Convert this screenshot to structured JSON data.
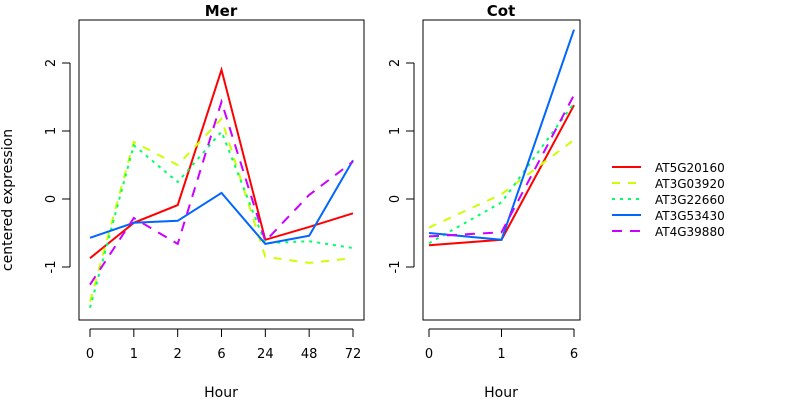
{
  "chart_data": [
    {
      "type": "line",
      "title": "Mer",
      "xlabel": "Hour",
      "ylabel": "centered expression",
      "categories": [
        "0",
        "1",
        "2",
        "6",
        "24",
        "48",
        "72"
      ],
      "yticks": [
        "-1",
        "0",
        "1",
        "2"
      ],
      "ylim": [
        -1.8,
        2.6
      ],
      "grid": false,
      "series": [
        {
          "name": "AT5G20160",
          "color": "#FF0000",
          "dash": "solid",
          "values": [
            -0.87,
            -0.35,
            -0.09,
            1.9,
            -0.6,
            -0.41,
            -0.21
          ]
        },
        {
          "name": "AT3G03920",
          "color": "#CCFF00",
          "dash": "dashed",
          "values": [
            -1.51,
            0.84,
            0.5,
            1.18,
            -0.85,
            -0.94,
            -0.87
          ]
        },
        {
          "name": "AT3G22660",
          "color": "#00FF66",
          "dash": "dotted",
          "values": [
            -1.6,
            0.79,
            0.25,
            0.99,
            -0.65,
            -0.62,
            -0.72
          ]
        },
        {
          "name": "AT3G53430",
          "color": "#0066FF",
          "dash": "solid",
          "values": [
            -0.57,
            -0.35,
            -0.32,
            0.09,
            -0.66,
            -0.54,
            0.57
          ]
        },
        {
          "name": "AT4G39880",
          "color": "#CC00FF",
          "dash": "longdash",
          "values": [
            -1.26,
            -0.28,
            -0.66,
            1.43,
            -0.62,
            0.06,
            0.55
          ]
        }
      ]
    },
    {
      "type": "line",
      "title": "Cot",
      "xlabel": "Hour",
      "ylabel": "",
      "categories": [
        "0",
        "1",
        "6"
      ],
      "yticks": [
        "-1",
        "0",
        "1",
        "2"
      ],
      "ylim": [
        -1.8,
        2.6
      ],
      "grid": false,
      "series": [
        {
          "name": "AT5G20160",
          "color": "#FF0000",
          "dash": "solid",
          "values": [
            -0.68,
            -0.6,
            1.38
          ]
        },
        {
          "name": "AT3G03920",
          "color": "#CCFF00",
          "dash": "dashed",
          "values": [
            -0.42,
            0.07,
            0.87
          ]
        },
        {
          "name": "AT3G22660",
          "color": "#00FF66",
          "dash": "dotted",
          "values": [
            -0.65,
            -0.05,
            1.41
          ]
        },
        {
          "name": "AT3G53430",
          "color": "#0066FF",
          "dash": "solid",
          "values": [
            -0.5,
            -0.6,
            2.49
          ]
        },
        {
          "name": "AT4G39880",
          "color": "#CC00FF",
          "dash": "longdash",
          "values": [
            -0.55,
            -0.49,
            1.53
          ]
        }
      ]
    }
  ],
  "legend": {
    "placement": "right",
    "entries": [
      {
        "label": "AT5G20160",
        "color": "#FF0000",
        "dash": "solid"
      },
      {
        "label": "AT3G03920",
        "color": "#CCFF00",
        "dash": "dashed"
      },
      {
        "label": "AT3G22660",
        "color": "#00FF66",
        "dash": "dotted"
      },
      {
        "label": "AT3G53430",
        "color": "#0066FF",
        "dash": "solid"
      },
      {
        "label": "AT4G39880",
        "color": "#CC00FF",
        "dash": "longdash"
      }
    ]
  }
}
